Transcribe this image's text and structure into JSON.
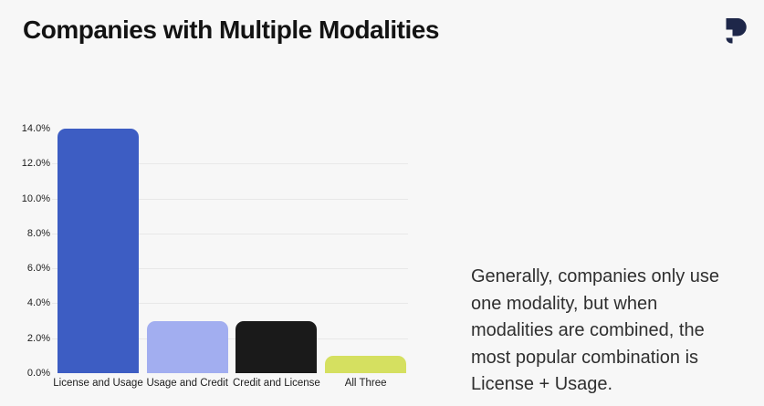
{
  "page": {
    "title": "Companies with Multiple Modalities",
    "background_color": "#f7f7f7",
    "title_color": "#131313"
  },
  "brand": {
    "logo_name": "brand-logo",
    "logo_color": "#1e2749"
  },
  "chart_data": {
    "type": "bar",
    "title": "Companies with Multiple Modalities",
    "categories": [
      "License and Usage",
      "Usage and Credit",
      "Credit and License",
      "All Three"
    ],
    "values": [
      14.0,
      3.0,
      3.0,
      1.0
    ],
    "unit": "%",
    "bar_colors": [
      "#3d5dc3",
      "#a2aef0",
      "#1a1a1a",
      "#d5e060"
    ],
    "ylim": [
      0,
      14
    ],
    "yticks": [
      0,
      2,
      4,
      6,
      8,
      10,
      12,
      14
    ],
    "ytick_labels": [
      "0.0%",
      "2.0%",
      "4.0%",
      "6.0%",
      "8.0%",
      "10.0%",
      "12.0%",
      "14.0%"
    ],
    "gridline_values": [
      2,
      4,
      6,
      8,
      10,
      12
    ],
    "grid_color": "#e8e8e8",
    "axis_label_color": "#1d1d1d",
    "xlabel": "",
    "ylabel": "",
    "legend": "none",
    "grid": "horizontal"
  },
  "annotation": {
    "text": "Generally, companies only use one modality, but when modalities are combined, the most popular combination is License + Usage.",
    "lines": [
      "Generally, companies only use",
      "one modality, but when",
      "modalities are combined, the",
      "most popular combination is",
      "License + Usage."
    ],
    "text_color": "#2f2f2f"
  }
}
